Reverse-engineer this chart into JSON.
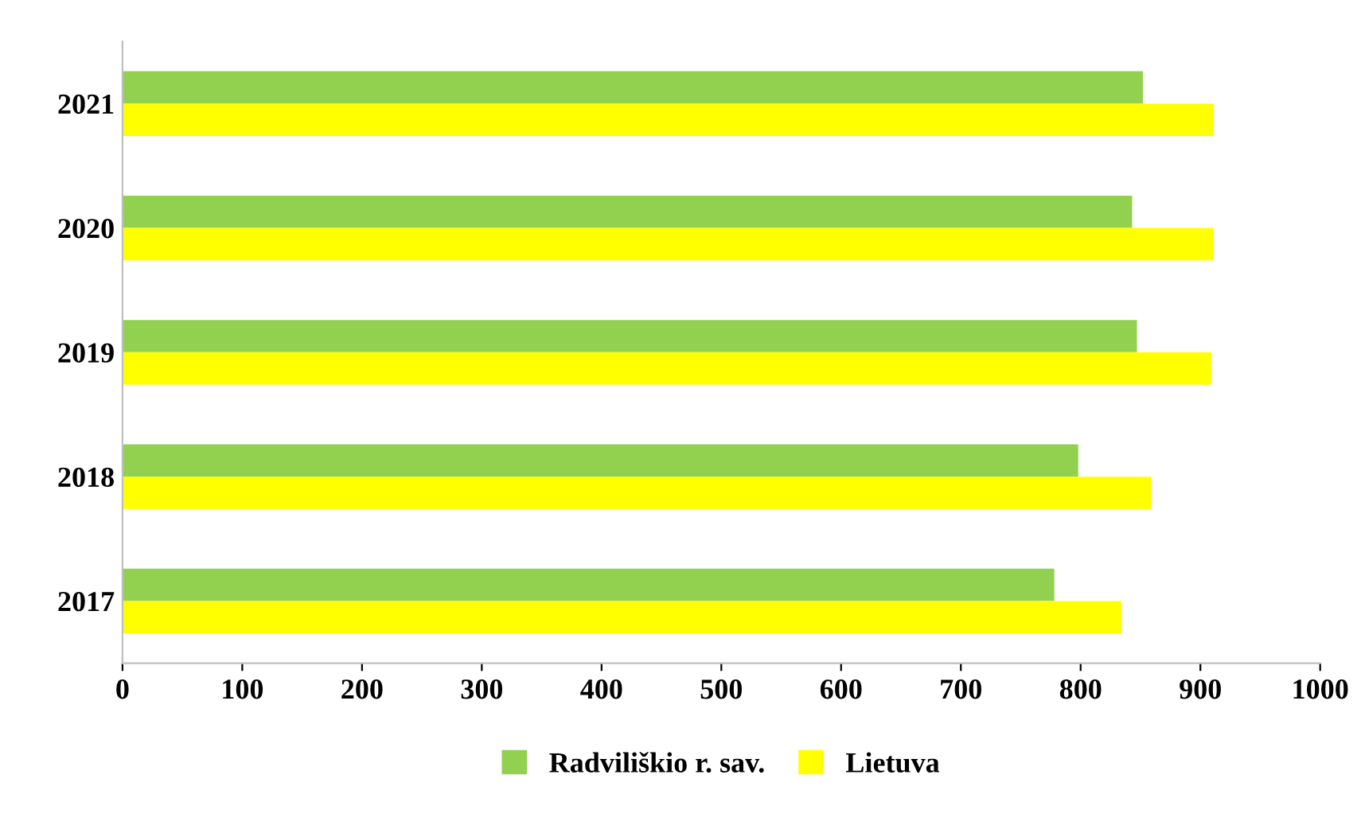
{
  "chart_data": {
    "type": "bar",
    "orientation": "horizontal",
    "categories": [
      "2021",
      "2020",
      "2019",
      "2018",
      "2017"
    ],
    "series": [
      {
        "name": "Radviliškio r. sav.",
        "color": "#92d050",
        "values": [
          852,
          843,
          847,
          798,
          778
        ]
      },
      {
        "name": "Lietuva",
        "color": "#ffff00",
        "values": [
          911,
          911,
          909,
          859,
          834
        ]
      }
    ],
    "xlim": [
      0,
      1000
    ],
    "xticks": [
      0,
      100,
      200,
      300,
      400,
      500,
      600,
      700,
      800,
      900,
      1000
    ],
    "grid": false,
    "legend": "bottom"
  }
}
